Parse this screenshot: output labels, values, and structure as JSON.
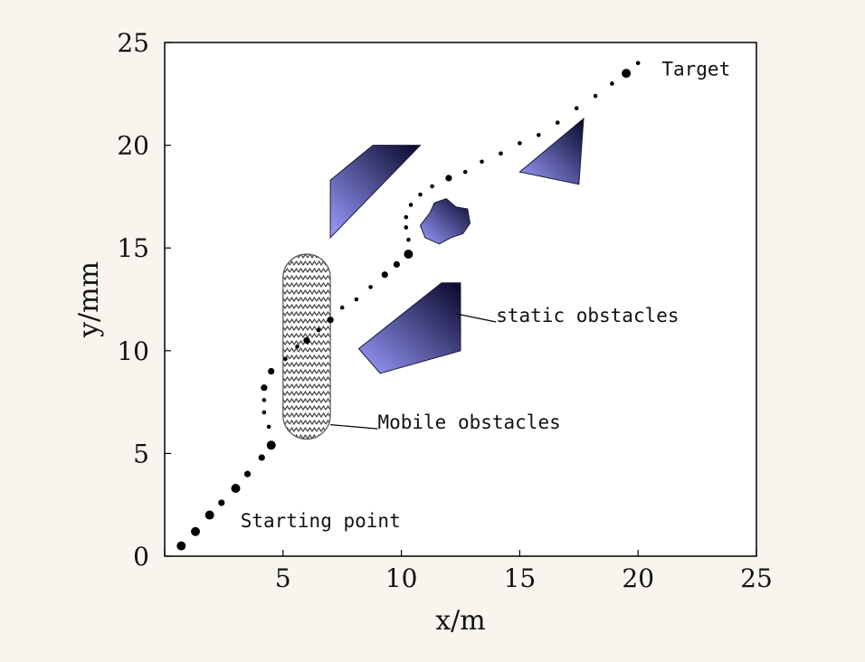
{
  "chart_data": {
    "type": "scatter",
    "title": "",
    "xlabel": "x/m",
    "ylabel": "y/mm",
    "xlim": [
      0,
      25
    ],
    "ylim": [
      0,
      25
    ],
    "xticks": [
      0,
      5,
      10,
      15,
      20,
      25
    ],
    "yticks": [
      0,
      5,
      10,
      15,
      20,
      25
    ],
    "x_tick_labels": [
      "",
      "5",
      "10",
      "15",
      "20",
      "25"
    ],
    "y_tick_labels": [
      "0",
      "5",
      "10",
      "15",
      "20",
      "25"
    ],
    "grid": false,
    "legend": "none",
    "path_points": [
      {
        "x": 0.7,
        "y": 0.5,
        "size": "large"
      },
      {
        "x": 1.3,
        "y": 1.2,
        "size": "large"
      },
      {
        "x": 1.9,
        "y": 2.0,
        "size": "large"
      },
      {
        "x": 2.4,
        "y": 2.6,
        "size": "medium"
      },
      {
        "x": 3.0,
        "y": 3.3,
        "size": "large"
      },
      {
        "x": 3.5,
        "y": 4.0,
        "size": "medium"
      },
      {
        "x": 4.1,
        "y": 4.8,
        "size": "medium"
      },
      {
        "x": 4.5,
        "y": 5.4,
        "size": "large"
      },
      {
        "x": 4.4,
        "y": 6.3,
        "size": "small"
      },
      {
        "x": 4.2,
        "y": 7.0,
        "size": "small"
      },
      {
        "x": 4.2,
        "y": 7.6,
        "size": "small"
      },
      {
        "x": 4.2,
        "y": 8.2,
        "size": "medium"
      },
      {
        "x": 4.5,
        "y": 9.0,
        "size": "medium"
      },
      {
        "x": 5.1,
        "y": 9.6,
        "size": "small"
      },
      {
        "x": 5.6,
        "y": 10.2,
        "size": "small"
      },
      {
        "x": 6.0,
        "y": 10.5,
        "size": "medium"
      },
      {
        "x": 6.5,
        "y": 11.0,
        "size": "small"
      },
      {
        "x": 7.0,
        "y": 11.5,
        "size": "medium"
      },
      {
        "x": 7.5,
        "y": 12.1,
        "size": "small"
      },
      {
        "x": 8.1,
        "y": 12.5,
        "size": "small"
      },
      {
        "x": 8.7,
        "y": 13.1,
        "size": "small"
      },
      {
        "x": 9.3,
        "y": 13.7,
        "size": "medium"
      },
      {
        "x": 9.8,
        "y": 14.2,
        "size": "medium"
      },
      {
        "x": 10.3,
        "y": 14.7,
        "size": "large"
      },
      {
        "x": 10.3,
        "y": 15.4,
        "size": "small"
      },
      {
        "x": 10.2,
        "y": 16.0,
        "size": "small"
      },
      {
        "x": 10.2,
        "y": 16.5,
        "size": "small"
      },
      {
        "x": 10.4,
        "y": 17.1,
        "size": "small"
      },
      {
        "x": 10.8,
        "y": 17.6,
        "size": "small"
      },
      {
        "x": 11.3,
        "y": 18.0,
        "size": "small"
      },
      {
        "x": 12.0,
        "y": 18.4,
        "size": "medium"
      },
      {
        "x": 12.7,
        "y": 18.7,
        "size": "small"
      },
      {
        "x": 13.4,
        "y": 19.2,
        "size": "small"
      },
      {
        "x": 14.2,
        "y": 19.6,
        "size": "small"
      },
      {
        "x": 15.0,
        "y": 20.1,
        "size": "small"
      },
      {
        "x": 15.8,
        "y": 20.5,
        "size": "small"
      },
      {
        "x": 16.6,
        "y": 21.1,
        "size": "small"
      },
      {
        "x": 17.4,
        "y": 21.8,
        "size": "small"
      },
      {
        "x": 18.2,
        "y": 22.4,
        "size": "small"
      },
      {
        "x": 18.9,
        "y": 23.0,
        "size": "small"
      },
      {
        "x": 19.5,
        "y": 23.5,
        "size": "large"
      },
      {
        "x": 20.0,
        "y": 24.0,
        "size": "small"
      }
    ],
    "static_obstacles": [
      {
        "points": [
          [
            7.0,
            15.5
          ],
          [
            7.0,
            18.3
          ],
          [
            8.8,
            20.0
          ],
          [
            10.8,
            20.0
          ]
        ]
      },
      {
        "points": [
          [
            8.2,
            10.1
          ],
          [
            9.1,
            8.9
          ],
          [
            12.5,
            10.0
          ],
          [
            12.5,
            13.3
          ],
          [
            11.7,
            13.3
          ]
        ]
      },
      {
        "points": [
          [
            15.0,
            18.7
          ],
          [
            17.7,
            21.3
          ],
          [
            17.5,
            18.1
          ]
        ]
      },
      {
        "points": [
          [
            11.2,
            16.7
          ],
          [
            11.4,
            17.2
          ],
          [
            11.9,
            17.4
          ],
          [
            12.3,
            17.0
          ],
          [
            12.8,
            16.9
          ],
          [
            12.9,
            16.2
          ],
          [
            12.6,
            15.7
          ],
          [
            12.1,
            15.5
          ],
          [
            11.6,
            15.2
          ],
          [
            11.0,
            15.5
          ],
          [
            10.8,
            16.1
          ]
        ]
      }
    ],
    "mobile_obstacle": {
      "x_min": 5.0,
      "x_max": 7.0,
      "y_min": 5.7,
      "y_max": 14.7
    },
    "annotations": {
      "target": "Target",
      "static": "static obstacles",
      "mobile": "Mobile obstacles",
      "start": "Starting point"
    },
    "annotation_anchors": {
      "target": {
        "x": 21.0,
        "y": 23.4
      },
      "static": {
        "x": 14.0,
        "y": 11.4
      },
      "mobile": {
        "x": 9.0,
        "y": 6.2
      },
      "start": {
        "x": 3.2,
        "y": 1.4
      }
    },
    "leader_lines": {
      "static": {
        "from": [
          12.3,
          11.8
        ],
        "to": [
          14.0,
          11.4
        ]
      },
      "mobile": {
        "from": [
          7.0,
          6.4
        ],
        "to": [
          9.0,
          6.2
        ]
      }
    },
    "colors": {
      "obstacle_dark": "#07072a",
      "obstacle_light": "#9b9cff",
      "path": "#000000",
      "axis": "#000000",
      "plot_bg": "#ffffff",
      "page_bg": "#f7f5ee"
    }
  }
}
